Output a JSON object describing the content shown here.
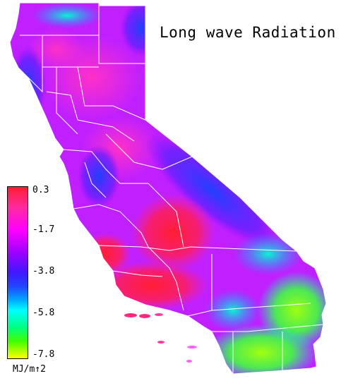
{
  "title": "Long wave Radiation",
  "legend": {
    "ticks": [
      "0.3",
      "-1.7",
      "-3.8",
      "-5.8",
      "-7.8"
    ],
    "unit": "MJ/m↑2",
    "colors": [
      "#ff1e32",
      "#ff00ff",
      "#4018ff",
      "#00ffff",
      "#40ff00",
      "#ffff00"
    ]
  },
  "map": {
    "region": "California",
    "boundary_color": "#ffffff"
  }
}
